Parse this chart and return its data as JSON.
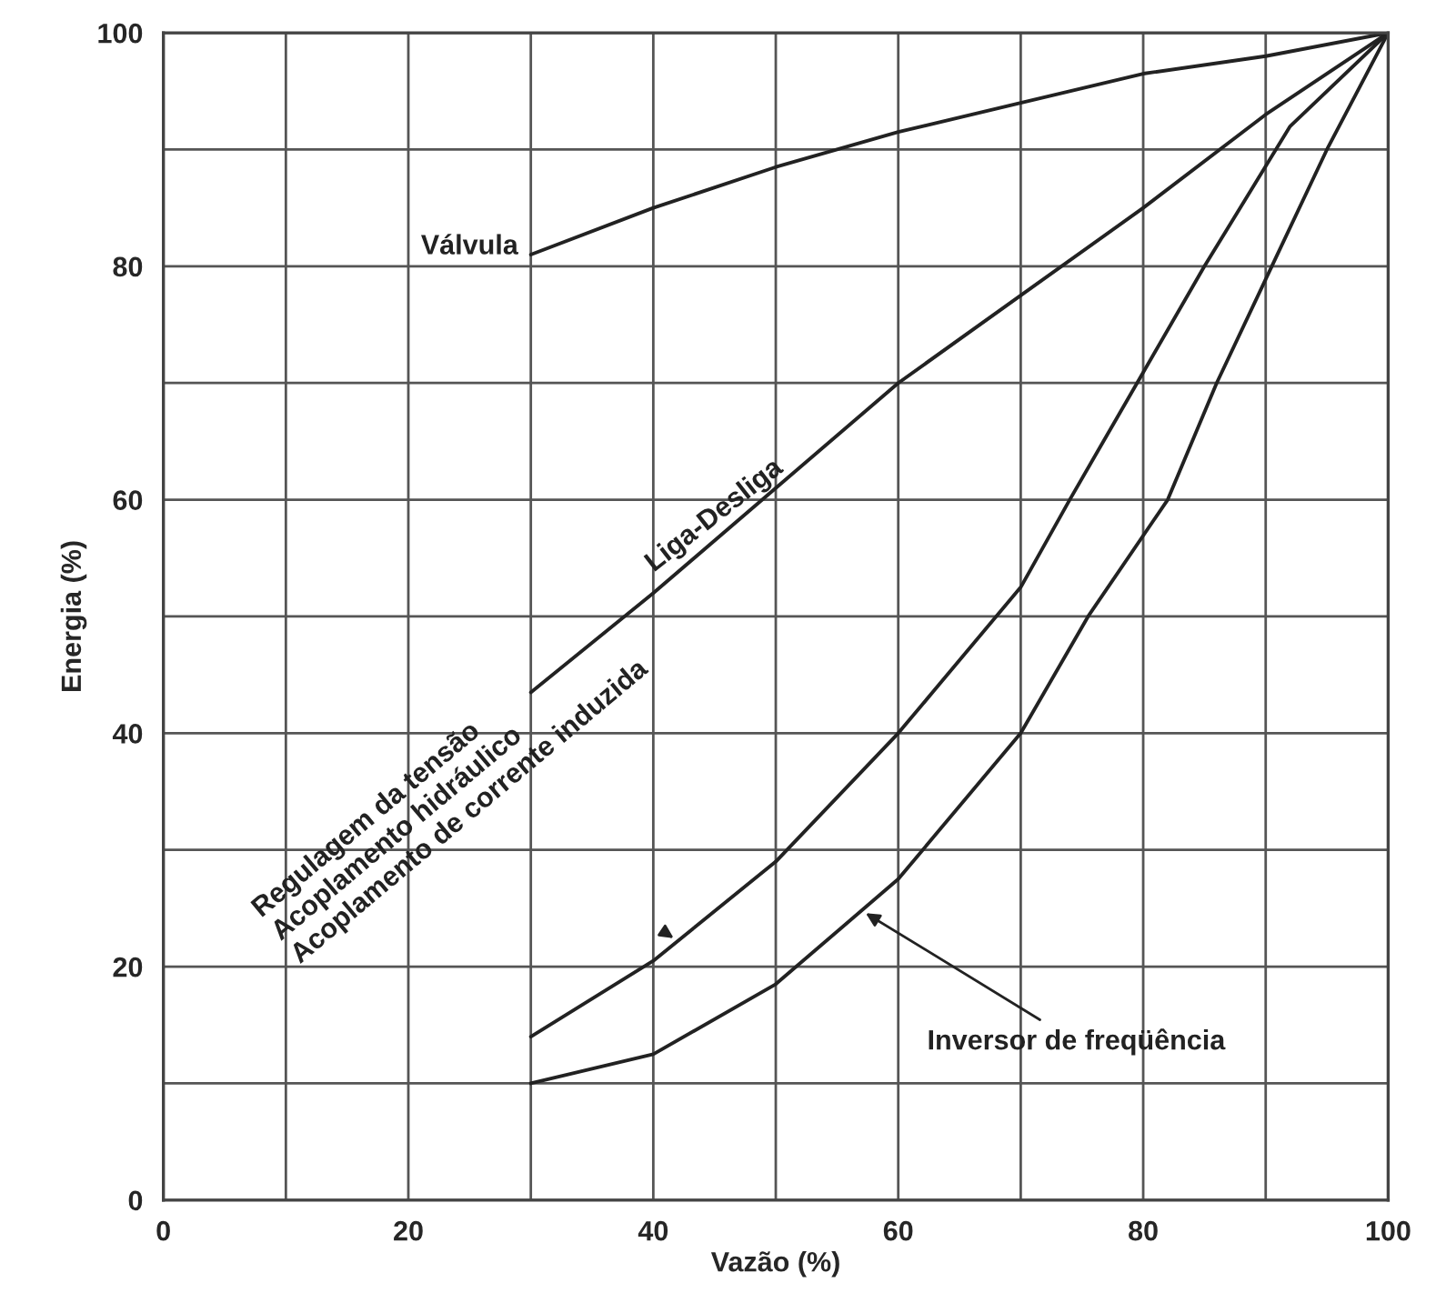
{
  "chart_data": {
    "type": "line",
    "xlabel": "Vazão (%)",
    "ylabel": "Energia (%)",
    "xlim": [
      0,
      100
    ],
    "ylim": [
      0,
      100
    ],
    "xticks": [
      0,
      {
        "value": 10,
        "label": null
      },
      20,
      {
        "value": 30,
        "label": null
      },
      40,
      {
        "value": 50,
        "label": null
      },
      60,
      {
        "value": 70,
        "label": null
      },
      80,
      {
        "value": 90,
        "label": null
      },
      100
    ],
    "yticks": [
      0,
      {
        "value": 10,
        "label": null
      },
      20,
      {
        "value": 30,
        "label": null
      },
      40,
      {
        "value": 50,
        "label": null
      },
      60,
      {
        "value": 70,
        "label": null
      },
      80,
      {
        "value": 90,
        "label": null
      },
      100
    ],
    "grid": true,
    "marker": "none",
    "line_style": "solid",
    "series": [
      {
        "color": "#222222",
        "x": [
          30,
          40,
          50,
          60,
          70,
          80,
          90,
          100
        ],
        "values": [
          81,
          85,
          88.5,
          91.5,
          94,
          96.5,
          98,
          100
        ]
      },
      {
        "color": "#222222",
        "x": [
          30,
          40,
          50,
          60,
          70,
          80,
          90,
          100
        ],
        "values": [
          43.5,
          52,
          61,
          70,
          77.5,
          85,
          93,
          100
        ]
      },
      {
        "color": "#222222",
        "x": [
          30,
          40,
          50,
          60,
          70,
          74,
          79.5,
          85,
          92,
          100
        ],
        "values": [
          14,
          20.5,
          29,
          40,
          52.5,
          60,
          70,
          80,
          92,
          100
        ]
      },
      {
        "color": "#222222",
        "x": [
          30,
          40,
          50,
          60,
          70,
          75.5,
          82,
          86,
          90.5,
          95,
          100
        ],
        "values": [
          10,
          12.5,
          18.5,
          27.5,
          40,
          50,
          60,
          70,
          80,
          90,
          100
        ]
      }
    ],
    "annotations": [
      {
        "text": "Válvula",
        "x": 30,
        "y": 81
      },
      {
        "text": "Liga-Desliga",
        "x": 45,
        "y": 56
      },
      {
        "text": "Regulagem da tensão\nAcoplamento hidráulico\nAcoplamento de corrente induzida",
        "x": 42,
        "y": 22.2
      },
      {
        "text": "Inversor de freqüência",
        "x": 57,
        "y": 24.8
      }
    ]
  }
}
